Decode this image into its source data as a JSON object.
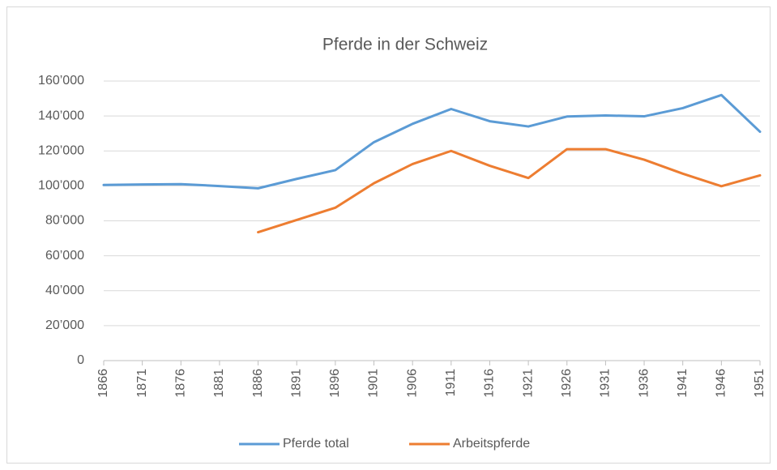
{
  "chart_data": {
    "type": "line",
    "title": "Pferde in der Schweiz",
    "categories": [
      "1866",
      "1871",
      "1876",
      "1881",
      "1886",
      "1891",
      "1896",
      "1901",
      "1906",
      "1911",
      "1916",
      "1921",
      "1926",
      "1931",
      "1936",
      "1941",
      "1946",
      "1951"
    ],
    "series": [
      {
        "name": "Pferde total",
        "color": "#5b9bd5",
        "values": [
          100500,
          100800,
          101000,
          99900,
          98600,
          104000,
          109000,
          125000,
          135500,
          144000,
          137000,
          134000,
          139700,
          140300,
          139800,
          144500,
          152000,
          131000
        ]
      },
      {
        "name": "Arbeitspferde",
        "color": "#ed7d31",
        "values": [
          null,
          null,
          null,
          null,
          73500,
          80500,
          87500,
          101500,
          112500,
          120000,
          111500,
          104500,
          121000,
          121000,
          115000,
          107000,
          99800,
          106000
        ]
      }
    ],
    "ylim": [
      0,
      160000
    ],
    "yticks": [
      0,
      {
        "value": 20000,
        "label": "20’000"
      },
      {
        "value": 40000,
        "label": "40’000"
      },
      {
        "value": 60000,
        "label": "60’000"
      },
      {
        "value": 80000,
        "label": "80’000"
      },
      {
        "value": 100000,
        "label": "100’000"
      },
      {
        "value": 120000,
        "label": "120’000"
      },
      {
        "value": 140000,
        "label": "140’000"
      },
      {
        "value": 160000,
        "label": "160’000"
      }
    ],
    "grid": true,
    "legend": "bottom"
  }
}
